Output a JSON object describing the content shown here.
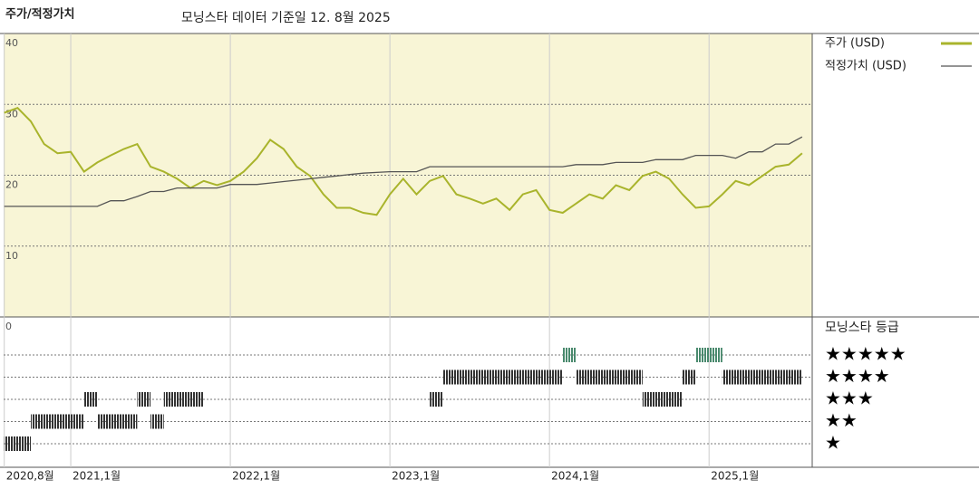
{
  "chart_data": {
    "type": "line",
    "title": "주가/적정가치",
    "subtitle": "모닝스타 데이터 기준일 12. 8월 2025",
    "x": [
      "2020-08",
      "2020-09",
      "2020-10",
      "2020-11",
      "2020-12",
      "2021-01",
      "2021-02",
      "2021-03",
      "2021-04",
      "2021-05",
      "2021-06",
      "2021-07",
      "2021-08",
      "2021-09",
      "2021-10",
      "2021-11",
      "2021-12",
      "2022-01",
      "2022-02",
      "2022-03",
      "2022-04",
      "2022-05",
      "2022-06",
      "2022-07",
      "2022-08",
      "2022-09",
      "2022-10",
      "2022-11",
      "2022-12",
      "2023-01",
      "2023-02",
      "2023-03",
      "2023-04",
      "2023-05",
      "2023-06",
      "2023-07",
      "2023-08",
      "2023-09",
      "2023-10",
      "2023-11",
      "2023-12",
      "2024-01",
      "2024-02",
      "2024-03",
      "2024-04",
      "2024-05",
      "2024-06",
      "2024-07",
      "2024-08",
      "2024-09",
      "2024-10",
      "2024-11",
      "2024-12",
      "2025-01",
      "2025-02",
      "2025-03",
      "2025-04",
      "2025-05",
      "2025-06",
      "2025-07",
      "2025-08"
    ],
    "series": [
      {
        "name": "주가 (USD)",
        "color": "#a9b42c",
        "values": [
          28.8,
          29.5,
          27.6,
          24.4,
          23.1,
          23.3,
          20.5,
          21.8,
          22.8,
          23.7,
          24.4,
          21.2,
          20.5,
          19.5,
          18.2,
          19.2,
          18.6,
          19.2,
          20.5,
          22.4,
          25,
          23.7,
          21.2,
          19.9,
          17.3,
          15.4,
          15.4,
          14.7,
          14.4,
          17.3,
          19.5,
          17.3,
          19.2,
          19.9,
          17.3,
          16.7,
          16,
          16.7,
          15.1,
          17.3,
          17.9,
          15.1,
          14.7,
          16,
          17.3,
          16.7,
          18.6,
          17.9,
          19.9,
          20.5,
          19.5,
          17.3,
          15.4,
          15.6,
          17.3,
          19.2,
          18.6,
          19.9,
          21.2,
          21.5,
          23.1
        ]
      },
      {
        "name": "적정가치 (USD)",
        "color": "#555555",
        "values": [
          15.6,
          15.6,
          15.6,
          15.6,
          15.6,
          15.6,
          15.6,
          15.6,
          16.4,
          16.4,
          17,
          17.7,
          17.7,
          18.2,
          18.2,
          18.2,
          18.2,
          18.7,
          18.7,
          18.7,
          18.9,
          19.1,
          19.3,
          19.5,
          19.7,
          19.9,
          20.1,
          20.3,
          20.4,
          20.5,
          20.5,
          20.5,
          21.2,
          21.2,
          21.2,
          21.2,
          21.2,
          21.2,
          21.2,
          21.2,
          21.2,
          21.2,
          21.2,
          21.5,
          21.5,
          21.5,
          21.8,
          21.8,
          21.8,
          22.2,
          22.2,
          22.2,
          22.8,
          22.8,
          22.8,
          22.4,
          23.3,
          23.3,
          24.4,
          24.4,
          25.4
        ]
      }
    ],
    "ylim": [
      0,
      40
    ],
    "yticks": [
      0,
      10,
      20,
      30,
      40
    ],
    "grid": true,
    "xticks": [
      {
        "value": "2020-08",
        "label": "2020,8월"
      },
      {
        "value": "2021-01",
        "label": "2021,1월"
      },
      {
        "value": "2022-01",
        "label": "2022,1월"
      },
      {
        "value": "2023-01",
        "label": "2023,1월"
      },
      {
        "value": "2024-01",
        "label": "2024,1월"
      },
      {
        "value": "2025-01",
        "label": "2025,1월"
      }
    ],
    "rating_title": "모닝스타 등급",
    "rating_levels": [
      {
        "value": 5,
        "label": "★★★★★"
      },
      {
        "value": 4,
        "label": "★★★★"
      },
      {
        "value": 3,
        "label": "★★★"
      },
      {
        "value": 2,
        "label": "★★"
      },
      {
        "value": 1,
        "label": "★"
      }
    ],
    "ratings": [
      {
        "start": "2020-08",
        "end": "2020-10",
        "stars": 1
      },
      {
        "start": "2020-10",
        "end": "2021-02",
        "stars": 2
      },
      {
        "start": "2021-02",
        "end": "2021-03",
        "stars": 3
      },
      {
        "start": "2021-03",
        "end": "2021-06",
        "stars": 2
      },
      {
        "start": "2021-06",
        "end": "2021-07",
        "stars": 3
      },
      {
        "start": "2021-07",
        "end": "2021-08",
        "stars": 2
      },
      {
        "start": "2021-08",
        "end": "2021-11",
        "stars": 3
      },
      {
        "start": "2023-04",
        "end": "2023-05",
        "stars": 3
      },
      {
        "start": "2023-05",
        "end": "2024-02",
        "stars": 4
      },
      {
        "start": "2024-02",
        "end": "2024-03",
        "stars": 5
      },
      {
        "start": "2024-03",
        "end": "2024-08",
        "stars": 4
      },
      {
        "start": "2024-08",
        "end": "2024-11",
        "stars": 3
      },
      {
        "start": "2024-11",
        "end": "2024-12",
        "stars": 4
      },
      {
        "start": "2024-12",
        "end": "2025-02",
        "stars": 5
      },
      {
        "start": "2025-02",
        "end": "2025-08",
        "stars": 4
      }
    ],
    "rating_colors": {
      "5": "#4a8a6e",
      "other": "#333333"
    }
  }
}
